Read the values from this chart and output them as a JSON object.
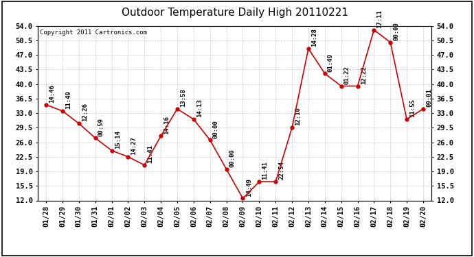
{
  "title": "Outdoor Temperature Daily High 20110221",
  "copyright_text": "Copyright 2011 Cartronics.com",
  "x_labels": [
    "01/28",
    "01/29",
    "01/30",
    "01/31",
    "02/01",
    "02/02",
    "02/03",
    "02/04",
    "02/05",
    "02/06",
    "02/07",
    "02/08",
    "02/09",
    "02/10",
    "02/11",
    "02/12",
    "02/13",
    "02/14",
    "02/15",
    "02/16",
    "02/17",
    "02/18",
    "02/19",
    "02/20"
  ],
  "y_values": [
    35.0,
    33.5,
    30.5,
    27.0,
    24.0,
    22.5,
    20.5,
    27.5,
    34.0,
    31.5,
    26.5,
    19.5,
    12.5,
    16.5,
    16.5,
    29.5,
    48.5,
    42.5,
    39.5,
    39.5,
    53.0,
    50.0,
    31.5,
    34.0
  ],
  "time_labels": [
    "14:46",
    "11:49",
    "12:26",
    "00:59",
    "15:14",
    "14:27",
    "11:41",
    "14:16",
    "13:58",
    "14:13",
    "00:00",
    "00:00",
    "14:49",
    "11:41",
    "22:54",
    "12:10",
    "14:28",
    "01:49",
    "01:22",
    "12:22",
    "17:11",
    "00:00",
    "11:55",
    "09:01"
  ],
  "y_min": 12.0,
  "y_max": 54.0,
  "y_ticks": [
    12.0,
    15.5,
    19.0,
    22.5,
    26.0,
    29.5,
    33.0,
    36.5,
    40.0,
    43.5,
    47.0,
    50.5,
    54.0
  ],
  "line_color": "#cc0000",
  "marker_color": "#cc0000",
  "bg_color": "#ffffff",
  "grid_color": "#bbbbbb",
  "title_fontsize": 11,
  "label_fontsize": 6.5,
  "tick_fontsize": 7.5,
  "copyright_fontsize": 6.5
}
